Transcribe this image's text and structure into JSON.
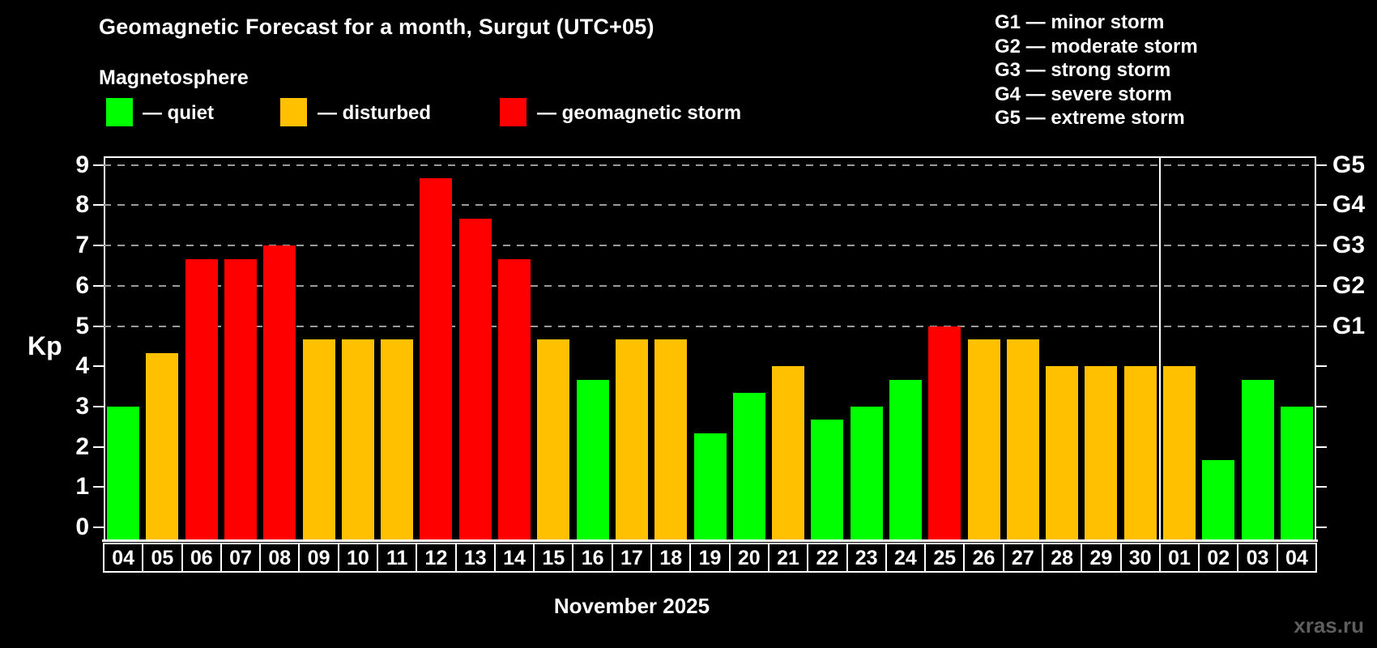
{
  "header": {
    "title": "Geomagnetic Forecast for a month, Surgut (UTC+05)",
    "subtitle": "Magnetosphere"
  },
  "legend": {
    "quiet_label": "— quiet",
    "disturbed_label": "— disturbed",
    "storm_label": "— geomagnetic storm"
  },
  "g_scale_legend": [
    "G1 — minor storm",
    "G2 — moderate storm",
    "G3 — strong storm",
    "G4 — severe storm",
    "G5 — extreme storm"
  ],
  "watermark": "xras.ru",
  "colors": {
    "quiet": "#00ff00",
    "disturbed": "#ffc000",
    "storm": "#ff0000",
    "background": "#000000",
    "grid": "#9a9a9a",
    "axis": "#ffffff"
  },
  "chart_data": {
    "type": "bar",
    "title": "Geomagnetic Forecast for a month, Surgut (UTC+05)",
    "xlabel": "November 2025",
    "ylabel": "Kp",
    "ylim": [
      0,
      9.2
    ],
    "yticks": [
      0,
      1,
      2,
      3,
      4,
      5,
      6,
      7,
      8,
      9
    ],
    "gridlines_at": [
      5,
      6,
      7,
      8,
      9
    ],
    "grid": "dashed, horizontal, levels 5-9 only",
    "legend_position": "top-left and top-right",
    "right_axis_labels": [
      {
        "label": "G1",
        "value": 5
      },
      {
        "label": "G2",
        "value": 6
      },
      {
        "label": "G3",
        "value": 7
      },
      {
        "label": "G4",
        "value": 8
      },
      {
        "label": "G5",
        "value": 9
      }
    ],
    "month_separator_after_index": 26,
    "categories": [
      "04",
      "05",
      "06",
      "07",
      "08",
      "09",
      "10",
      "11",
      "12",
      "13",
      "14",
      "15",
      "16",
      "17",
      "18",
      "19",
      "20",
      "21",
      "22",
      "23",
      "24",
      "25",
      "26",
      "27",
      "28",
      "29",
      "30",
      "01",
      "02",
      "03",
      "04"
    ],
    "values": [
      3.0,
      4.33,
      6.67,
      6.67,
      7.0,
      4.67,
      4.67,
      4.67,
      8.67,
      7.67,
      6.67,
      4.67,
      3.67,
      4.67,
      4.67,
      2.33,
      3.33,
      4.0,
      2.67,
      3.0,
      3.67,
      5.0,
      4.67,
      4.67,
      4.0,
      4.0,
      4.0,
      4.0,
      1.67,
      3.67,
      3.0
    ],
    "statuses": [
      "quiet",
      "disturbed",
      "storm",
      "storm",
      "storm",
      "disturbed",
      "disturbed",
      "disturbed",
      "storm",
      "storm",
      "storm",
      "disturbed",
      "quiet",
      "disturbed",
      "disturbed",
      "quiet",
      "quiet",
      "disturbed",
      "quiet",
      "quiet",
      "quiet",
      "storm",
      "disturbed",
      "disturbed",
      "disturbed",
      "disturbed",
      "disturbed",
      "disturbed",
      "quiet",
      "quiet",
      "quiet"
    ]
  }
}
